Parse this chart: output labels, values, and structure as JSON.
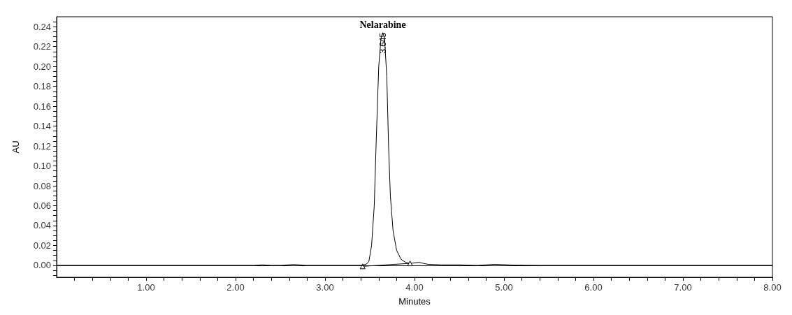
{
  "chart_data": {
    "type": "line",
    "xlabel": "Minutes",
    "ylabel": "AU",
    "xlim": [
      0,
      8
    ],
    "ylim": [
      -0.012,
      0.25
    ],
    "xticks": [
      {
        "value": 0.2,
        "label": null
      },
      {
        "value": 0.4,
        "label": null
      },
      {
        "value": 0.6,
        "label": null
      },
      {
        "value": 0.8,
        "label": null
      },
      {
        "value": 1,
        "label": "1.00"
      },
      {
        "value": 1.2,
        "label": null
      },
      {
        "value": 1.4,
        "label": null
      },
      {
        "value": 1.6,
        "label": null
      },
      {
        "value": 1.8,
        "label": null
      },
      {
        "value": 2,
        "label": "2.00"
      },
      {
        "value": 2.2,
        "label": null
      },
      {
        "value": 2.4,
        "label": null
      },
      {
        "value": 2.6,
        "label": null
      },
      {
        "value": 2.8,
        "label": null
      },
      {
        "value": 3,
        "label": "3.00"
      },
      {
        "value": 3.2,
        "label": null
      },
      {
        "value": 3.4,
        "label": null
      },
      {
        "value": 3.6,
        "label": null
      },
      {
        "value": 3.8,
        "label": null
      },
      {
        "value": 4,
        "label": "4.00"
      },
      {
        "value": 4.2,
        "label": null
      },
      {
        "value": 4.4,
        "label": null
      },
      {
        "value": 4.6,
        "label": null
      },
      {
        "value": 4.8,
        "label": null
      },
      {
        "value": 5,
        "label": "5.00"
      },
      {
        "value": 5.2,
        "label": null
      },
      {
        "value": 5.4,
        "label": null
      },
      {
        "value": 5.6,
        "label": null
      },
      {
        "value": 5.8,
        "label": null
      },
      {
        "value": 6,
        "label": "6.00"
      },
      {
        "value": 6.2,
        "label": null
      },
      {
        "value": 6.4,
        "label": null
      },
      {
        "value": 6.6,
        "label": null
      },
      {
        "value": 6.8,
        "label": null
      },
      {
        "value": 7,
        "label": "7.00"
      },
      {
        "value": 7.2,
        "label": null
      },
      {
        "value": 7.4,
        "label": null
      },
      {
        "value": 7.6,
        "label": null
      },
      {
        "value": 7.8,
        "label": null
      },
      {
        "value": 8,
        "label": "8.00"
      }
    ],
    "yticks": [
      {
        "value": -0.01,
        "label": null
      },
      {
        "value": -0.005,
        "label": null
      },
      {
        "value": 0,
        "label": "0.00"
      },
      {
        "value": 0.005,
        "label": null
      },
      {
        "value": 0.01,
        "label": null
      },
      {
        "value": 0.015,
        "label": null
      },
      0.02,
      {
        "value": 0.025,
        "label": null
      },
      {
        "value": 0.03,
        "label": null
      },
      {
        "value": 0.035,
        "label": null
      },
      0.04,
      {
        "value": 0.045,
        "label": null
      },
      {
        "value": 0.05,
        "label": null
      },
      {
        "value": 0.055,
        "label": null
      },
      0.06,
      {
        "value": 0.065,
        "label": null
      },
      {
        "value": 0.07,
        "label": null
      },
      {
        "value": 0.075,
        "label": null
      },
      0.08,
      {
        "value": 0.085,
        "label": null
      },
      {
        "value": 0.09,
        "label": null
      },
      {
        "value": 0.095,
        "label": null
      },
      {
        "value": 0.1,
        "label": "0.10"
      },
      {
        "value": 0.105,
        "label": null
      },
      {
        "value": 0.11,
        "label": null
      },
      {
        "value": 0.115,
        "label": null
      },
      0.12,
      {
        "value": 0.125,
        "label": null
      },
      {
        "value": 0.13,
        "label": null
      },
      {
        "value": 0.135,
        "label": null
      },
      0.14,
      {
        "value": 0.145,
        "label": null
      },
      {
        "value": 0.15,
        "label": null
      },
      {
        "value": 0.155,
        "label": null
      },
      0.16,
      {
        "value": 0.165,
        "label": null
      },
      {
        "value": 0.17,
        "label": null
      },
      {
        "value": 0.175,
        "label": null
      },
      0.18,
      {
        "value": 0.185,
        "label": null
      },
      {
        "value": 0.19,
        "label": null
      },
      {
        "value": 0.195,
        "label": null
      },
      {
        "value": 0.2,
        "label": "0.20"
      },
      {
        "value": 0.205,
        "label": null
      },
      {
        "value": 0.21,
        "label": null
      },
      {
        "value": 0.215,
        "label": null
      },
      0.22,
      {
        "value": 0.225,
        "label": null
      },
      {
        "value": 0.23,
        "label": null
      },
      {
        "value": 0.235,
        "label": null
      },
      0.24,
      {
        "value": 0.245,
        "label": null
      }
    ],
    "grid": false,
    "marker": "none",
    "line_style": "solid",
    "ref_lines": [
      {
        "axis": "y",
        "value": 0,
        "color": "#000000"
      }
    ],
    "annotations": [
      {
        "text": "Nelarabine",
        "x": 3.645,
        "y": 0.234
      },
      {
        "text": "3.645",
        "x": 3.645,
        "y": 0.234
      }
    ],
    "series": [
      {
        "color": "#000000",
        "x": [
          0,
          1,
          2,
          2.2,
          2.3,
          2.4,
          2.5,
          2.65,
          2.8,
          3,
          3.2,
          3.4,
          3.46,
          3.49,
          3.52,
          3.55,
          3.57,
          3.6,
          3.625,
          3.645,
          3.665,
          3.69,
          3.71,
          3.73,
          3.76,
          3.8,
          3.85,
          3.9,
          3.95,
          4.05,
          4.15,
          4.3,
          4.5,
          4.7,
          4.9,
          5.1,
          5.4,
          6,
          7,
          8
        ],
        "values": [
          0,
          0,
          0,
          0,
          0.0005,
          0,
          0,
          0.0008,
          0,
          0,
          0,
          0,
          0.001,
          0.004,
          0.02,
          0.06,
          0.12,
          0.2,
          0.228,
          0.234,
          0.228,
          0.19,
          0.12,
          0.07,
          0.035,
          0.015,
          0.006,
          0.003,
          0.002,
          0.003,
          0.001,
          0.0005,
          0.0005,
          0,
          0.001,
          0.0003,
          0,
          0,
          0,
          0
        ]
      },
      {
        "color": "#000000",
        "marker": "triangle",
        "x": [
          3.42,
          3.95
        ],
        "values": [
          -0.001,
          0.002
        ]
      }
    ]
  }
}
